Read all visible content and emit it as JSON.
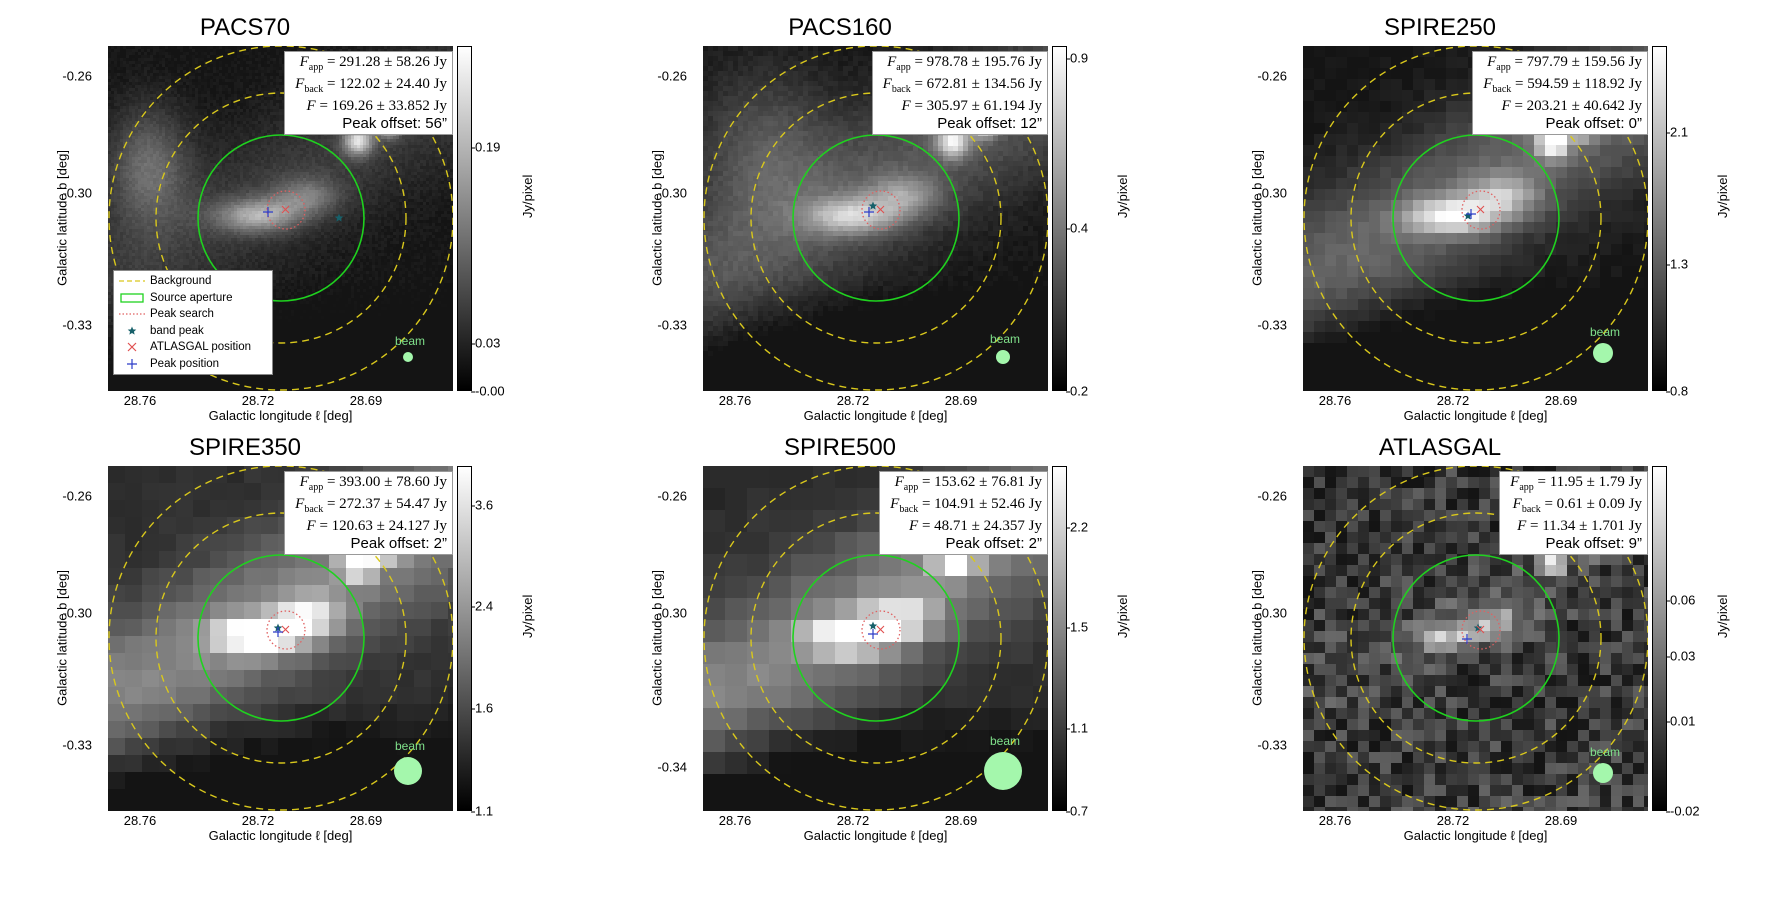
{
  "colors": {
    "background_annulus": "#d9c81c",
    "source_aperture": "#1fd21f",
    "peak_search": "#e06060",
    "band_peak": "#17606a",
    "atlasgal_position": "#e05050",
    "peak_position": "#2c3cc8",
    "beam": "#a4f7ac",
    "beam_label": "#7fe08a"
  },
  "legend": {
    "background": "Background",
    "source_aperture": "Source aperture",
    "peak_search": "Peak search",
    "band_peak": "band peak",
    "atlasgal_position": "ATLASGAL position",
    "peak_position": "Peak position"
  },
  "chart_data": [
    {
      "type": "heatmap",
      "title": "PACS70",
      "xlabel": "Galactic longitude ℓ [deg]",
      "ylabel": "Galactic latitude b [deg]",
      "x_ticks": [
        "28.76",
        "28.72",
        "28.69"
      ],
      "y_ticks": [
        "-0.26",
        "-0.30",
        "-0.33"
      ],
      "colorbar": {
        "label": "Jy/pixel",
        "ticks": [
          "0.19",
          "0.03",
          "-0.00"
        ],
        "scale": "log"
      },
      "info": {
        "F_app": "291.28 ± 58.26 Jy",
        "F_back": "122.02 ± 24.40 Jy",
        "F": "169.26 ± 33.852 Jy",
        "peak_offset": "Peak offset: 56”"
      },
      "beam_label": "beam",
      "legend": true
    },
    {
      "type": "heatmap",
      "title": "PACS160",
      "xlabel": "Galactic longitude ℓ [deg]",
      "ylabel": "Galactic latitude b [deg]",
      "x_ticks": [
        "28.76",
        "28.72",
        "28.69"
      ],
      "y_ticks": [
        "-0.26",
        "-0.30",
        "-0.33"
      ],
      "colorbar": {
        "label": "Jy/pixel",
        "ticks": [
          "0.9",
          "0.4",
          "0.2"
        ],
        "scale": "log"
      },
      "info": {
        "F_app": "978.78 ± 195.76 Jy",
        "F_back": "672.81 ± 134.56 Jy",
        "F": "305.97 ± 61.194 Jy",
        "peak_offset": "Peak offset: 12”"
      },
      "beam_label": "beam",
      "legend": false
    },
    {
      "type": "heatmap",
      "title": "SPIRE250",
      "xlabel": "Galactic longitude ℓ [deg]",
      "ylabel": "Galactic latitude b [deg]",
      "x_ticks": [
        "28.76",
        "28.72",
        "28.69"
      ],
      "y_ticks": [
        "-0.26",
        "-0.30",
        "-0.33"
      ],
      "colorbar": {
        "label": "Jy/pixel",
        "ticks": [
          "2.1",
          "1.3",
          "0.8"
        ],
        "scale": "log"
      },
      "info": {
        "F_app": "797.79 ± 159.56 Jy",
        "F_back": "594.59 ± 118.92 Jy",
        "F": "203.21 ± 40.642 Jy",
        "peak_offset": "Peak offset: 0”"
      },
      "beam_label": "beam",
      "legend": false
    },
    {
      "type": "heatmap",
      "title": "SPIRE350",
      "xlabel": "Galactic longitude ℓ [deg]",
      "ylabel": "Galactic latitude b [deg]",
      "x_ticks": [
        "28.76",
        "28.72",
        "28.69"
      ],
      "y_ticks": [
        "-0.26",
        "-0.30",
        "-0.33"
      ],
      "colorbar": {
        "label": "Jy/pixel",
        "ticks": [
          "3.6",
          "2.4",
          "1.6",
          "1.1"
        ],
        "scale": "log"
      },
      "info": {
        "F_app": "393.00 ± 78.60 Jy",
        "F_back": "272.37 ± 54.47 Jy",
        "F": "120.63 ± 24.127 Jy",
        "peak_offset": "Peak offset: 2”"
      },
      "beam_label": "beam",
      "legend": false
    },
    {
      "type": "heatmap",
      "title": "SPIRE500",
      "xlabel": "Galactic longitude ℓ [deg]",
      "ylabel": "Galactic latitude b [deg]",
      "x_ticks": [
        "28.76",
        "28.72",
        "28.69"
      ],
      "y_ticks": [
        "-0.26",
        "-0.30",
        "-0.34"
      ],
      "colorbar": {
        "label": "Jy/pixel",
        "ticks": [
          "2.2",
          "1.5",
          "1.1",
          "0.7"
        ],
        "scale": "log"
      },
      "info": {
        "F_app": "153.62 ± 76.81 Jy",
        "F_back": "104.91 ± 52.46 Jy",
        "F": "48.71 ± 24.357 Jy",
        "peak_offset": "Peak offset: 2”"
      },
      "beam_label": "beam",
      "legend": false
    },
    {
      "type": "heatmap",
      "title": "ATLASGAL",
      "xlabel": "Galactic longitude ℓ [deg]",
      "ylabel": "Galactic latitude b [deg]",
      "x_ticks": [
        "28.76",
        "28.72",
        "28.69"
      ],
      "y_ticks": [
        "-0.26",
        "-0.30",
        "-0.33"
      ],
      "colorbar": {
        "label": "Jy/pixel",
        "ticks": [
          "0.06",
          "0.03",
          "0.01",
          "-0.02"
        ],
        "scale": "log"
      },
      "info": {
        "F_app": "11.95 ± 1.79 Jy",
        "F_back": "0.61 ± 0.09 Jy",
        "F": "11.34 ± 1.701 Jy",
        "peak_offset": "Peak offset: 9”"
      },
      "beam_label": "beam",
      "legend": false
    }
  ]
}
